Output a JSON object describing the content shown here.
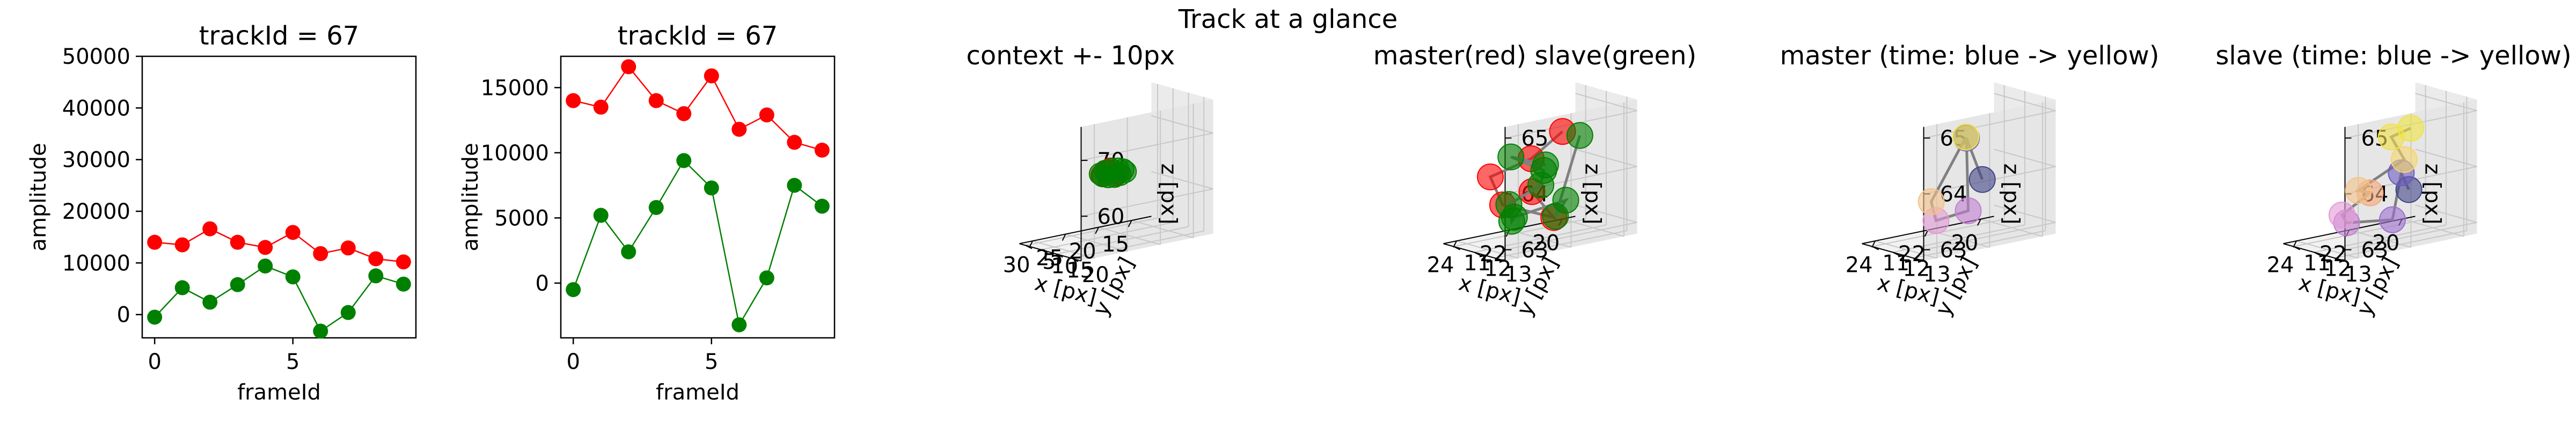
{
  "figure": {
    "suptitle": "Track at a glance"
  },
  "colors": {
    "master": "#ff0000",
    "slave": "#008000",
    "line": "#808080"
  },
  "chart_data": [
    {
      "type": "line",
      "title": "trackId = 67",
      "xlabel": "frameId",
      "ylabel": "amplitude",
      "x": [
        0,
        1,
        2,
        3,
        4,
        5,
        6,
        7,
        8,
        9
      ],
      "xlim": [
        -0.45,
        9.45
      ],
      "ylim": [
        -4500,
        50000
      ],
      "xticks": [
        0,
        5
      ],
      "yticks": [
        0,
        10000,
        20000,
        30000,
        40000,
        50000
      ],
      "series": [
        {
          "color": "#ff0000",
          "values": [
            14000,
            13500,
            16600,
            14000,
            13000,
            15900,
            11800,
            12900,
            10800,
            10200
          ]
        },
        {
          "color": "#008000",
          "values": [
            -500,
            5200,
            2400,
            5800,
            9400,
            7300,
            -3200,
            400,
            7500,
            5900
          ]
        }
      ]
    },
    {
      "type": "line",
      "title": "trackId = 67",
      "xlabel": "frameId",
      "ylabel": "amplitude",
      "x": [
        0,
        1,
        2,
        3,
        4,
        5,
        6,
        7,
        8,
        9
      ],
      "xlim": [
        -0.45,
        9.45
      ],
      "ylim": [
        -4200,
        17400
      ],
      "xticks": [
        0,
        5
      ],
      "yticks": [
        0,
        5000,
        10000,
        15000
      ],
      "series": [
        {
          "color": "#ff0000",
          "values": [
            14000,
            13500,
            16600,
            14000,
            13000,
            15900,
            11800,
            12900,
            10800,
            10200
          ]
        },
        {
          "color": "#008000",
          "values": [
            -500,
            5200,
            2400,
            5800,
            9400,
            7300,
            -3200,
            400,
            7500,
            5900
          ]
        }
      ]
    },
    {
      "type": "scatter3d",
      "title": "context +- 10px",
      "xlabel": "x [px]",
      "ylabel": "y [px]",
      "zlabel": "z [px]",
      "xlim": [
        12,
        32
      ],
      "ylim": [
        3,
        23
      ],
      "zlim": [
        52,
        76
      ],
      "xticks": [
        15,
        20,
        25,
        30
      ],
      "yticks": [
        5,
        10,
        15,
        20
      ],
      "zticks": [
        60,
        70
      ],
      "series": [
        {
          "name": "master",
          "color": "#ff0000",
          "points": [
            [
              21.5,
              12.5,
              63.5
            ],
            [
              22.5,
              12.2,
              64.5
            ],
            [
              23.5,
              11.5,
              63.5
            ],
            [
              22.8,
              11.8,
              64.2
            ],
            [
              21.8,
              12.4,
              63.2
            ]
          ]
        },
        {
          "name": "slave",
          "color": "#008000",
          "points": [
            [
              20.5,
              12.8,
              63.6
            ],
            [
              21.2,
              12.6,
              63.2
            ],
            [
              22.0,
              12.4,
              63.0
            ],
            [
              22.8,
              12.1,
              63.1
            ],
            [
              23.5,
              11.8,
              63.4
            ],
            [
              23.8,
              11.6,
              63.8
            ],
            [
              23.2,
              11.9,
              64.2
            ],
            [
              22.4,
              12.2,
              64.4
            ],
            [
              21.5,
              12.5,
              64.3
            ],
            [
              20.8,
              12.7,
              64.0
            ]
          ]
        }
      ]
    },
    {
      "type": "scatter3d",
      "title": "master(red) slave(green)",
      "xlabel": "x [px]",
      "ylabel": "y [px]",
      "zlabel": "z [px]",
      "xlim": [
        19.5,
        24.5
      ],
      "ylim": [
        10.5,
        13.5
      ],
      "zlim": [
        62.8,
        65.2
      ],
      "xticks": [
        20,
        22,
        24
      ],
      "yticks": [
        11,
        12,
        13
      ],
      "zticks": [
        63,
        64,
        65
      ],
      "series": [
        {
          "name": "master",
          "color": "#ff0000",
          "points": [
            [
              21.0,
              11.8,
              64.6
            ],
            [
              22.5,
              12.2,
              64.3
            ],
            [
              23.5,
              11.5,
              64.0
            ],
            [
              22.8,
              11.2,
              63.4
            ],
            [
              21.8,
              12.4,
              63.2
            ],
            [
              22.0,
              11.6,
              63.6
            ]
          ]
        },
        {
          "name": "slave",
          "color": "#008000",
          "points": [
            [
              20.5,
              12.0,
              64.5
            ],
            [
              20.8,
              11.2,
              63.0
            ],
            [
              21.5,
              12.6,
              63.5
            ],
            [
              22.2,
              11.0,
              63.1
            ],
            [
              23.0,
              11.9,
              63.2
            ],
            [
              23.5,
              12.4,
              63.6
            ],
            [
              22.6,
              12.8,
              63.9
            ],
            [
              21.4,
              11.4,
              63.9
            ],
            [
              22.8,
              11.6,
              64.3
            ],
            [
              21.8,
              12.0,
              64.1
            ]
          ]
        }
      ]
    },
    {
      "type": "scatter3d",
      "title": "master (time: blue -> yellow)",
      "xlabel": "x [px]",
      "ylabel": "y [px]",
      "zlabel": "z [px]",
      "xlim": [
        19.5,
        24.5
      ],
      "ylim": [
        10.5,
        13.5
      ],
      "zlim": [
        62.8,
        65.2
      ],
      "xticks": [
        20,
        22,
        24
      ],
      "yticks": [
        11,
        12,
        13
      ],
      "zticks": [
        63,
        64,
        65
      ],
      "series": [
        {
          "name": "master",
          "color": "time-gradient",
          "colors": [
            "#414487",
            "#7b68c6",
            "#c17fd1",
            "#e39ad6",
            "#f4c38a",
            "#f0e442"
          ],
          "points": [
            [
              20.8,
              11.6,
              63.7
            ],
            [
              21.4,
              11.6,
              64.5
            ],
            [
              21.8,
              12.2,
              63.3
            ],
            [
              22.4,
              11.4,
              63.1
            ],
            [
              23.2,
              12.2,
              63.6
            ],
            [
              22.2,
              12.6,
              64.7
            ]
          ]
        }
      ]
    },
    {
      "type": "scatter3d",
      "title": "slave (time: blue -> yellow)",
      "xlabel": "x [px]",
      "ylabel": "y [px]",
      "zlabel": "z [px]",
      "xlim": [
        19.5,
        24.5
      ],
      "ylim": [
        10.5,
        13.5
      ],
      "zlim": [
        62.8,
        65.2
      ],
      "xticks": [
        20,
        22,
        24
      ],
      "yticks": [
        11,
        12,
        13
      ],
      "zticks": [
        63,
        64,
        65
      ],
      "series": [
        {
          "name": "slave",
          "color": "time-gradient",
          "colors": [
            "#414487",
            "#6d5cc0",
            "#9d6fd0",
            "#c17fd1",
            "#e39ad6",
            "#f4a87a",
            "#f4c38a",
            "#f7d66a",
            "#f2e04a",
            "#f0e442"
          ],
          "points": [
            [
              20.6,
              11.6,
              63.5
            ],
            [
              21.2,
              12.0,
              63.9
            ],
            [
              22.0,
              12.6,
              63.2
            ],
            [
              22.8,
              11.4,
              63.1
            ],
            [
              23.6,
              12.2,
              63.4
            ],
            [
              23.0,
              12.8,
              63.8
            ],
            [
              22.2,
              11.2,
              63.6
            ],
            [
              21.4,
              12.4,
              64.2
            ],
            [
              20.8,
              11.0,
              64.4
            ],
            [
              21.0,
              12.2,
              64.7
            ]
          ]
        }
      ]
    }
  ]
}
